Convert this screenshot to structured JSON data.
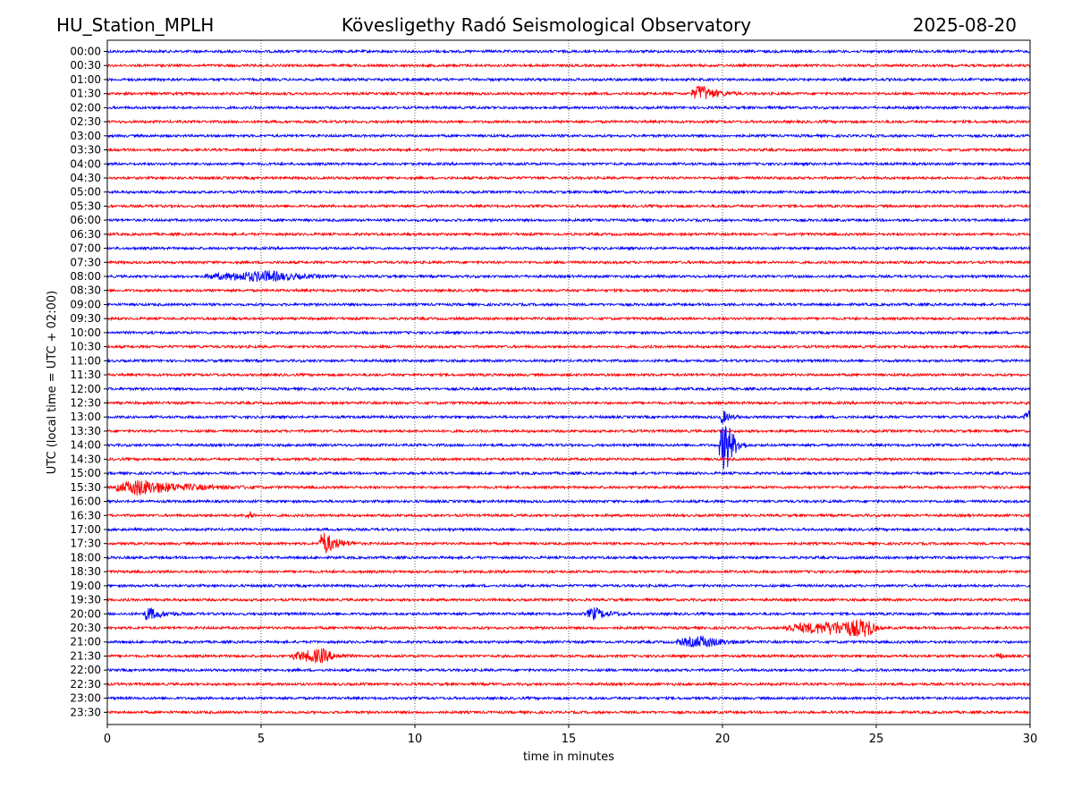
{
  "header": {
    "station": "HU_Station_MPLH",
    "title": "Kövesligethy Radó Seismological Observatory",
    "date": "2025-08-20"
  },
  "chart_data": {
    "type": "line",
    "subtype": "helicorder",
    "xlabel": "time in minutes",
    "ylabel": "UTC (local time = UTC + 02:00)",
    "xlim": [
      0,
      30
    ],
    "x_ticks": [
      "0",
      "5",
      "10",
      "15",
      "20",
      "25",
      "30"
    ],
    "grid": "vertical dotted lines at each x tick",
    "colors": {
      "even_rows": "#0000ff",
      "odd_rows": "#ff0000",
      "frame": "#000000"
    },
    "rows": [
      "00:00",
      "00:30",
      "01:00",
      "01:30",
      "02:00",
      "02:30",
      "03:00",
      "03:30",
      "04:00",
      "04:30",
      "05:00",
      "05:30",
      "06:00",
      "06:30",
      "07:00",
      "07:30",
      "08:00",
      "08:30",
      "09:00",
      "09:30",
      "10:00",
      "10:30",
      "11:00",
      "11:30",
      "12:00",
      "12:30",
      "13:00",
      "13:30",
      "14:00",
      "14:30",
      "15:00",
      "15:30",
      "16:00",
      "16:30",
      "17:00",
      "17:30",
      "18:00",
      "18:30",
      "19:00",
      "19:30",
      "20:00",
      "20:30",
      "21:00",
      "21:30",
      "22:00",
      "22:30",
      "23:00",
      "23:30"
    ],
    "events": [
      {
        "row": "01:30",
        "minute_start": 19.0,
        "minute_end": 20.6,
        "peak_minute": 19.3,
        "amplitude": 0.6
      },
      {
        "row": "08:00",
        "minute_start": 3.2,
        "minute_end": 7.8,
        "peak_minute": 5.3,
        "amplitude": 0.35
      },
      {
        "row": "13:00",
        "minute_start": 19.9,
        "minute_end": 20.6,
        "peak_minute": 20.0,
        "amplitude": 0.5
      },
      {
        "row": "13:00",
        "minute_start": 29.8,
        "minute_end": 30.0,
        "peak_minute": 30.0,
        "amplitude": 0.5
      },
      {
        "row": "14:00",
        "minute_start": 19.9,
        "minute_end": 20.8,
        "peak_minute": 20.1,
        "amplitude": 2.2
      },
      {
        "row": "15:30",
        "minute_start": 0.3,
        "minute_end": 5.0,
        "peak_minute": 1.0,
        "amplitude": 0.55
      },
      {
        "row": "16:30",
        "minute_start": 4.5,
        "minute_end": 4.9,
        "peak_minute": 4.7,
        "amplitude": 0.25
      },
      {
        "row": "17:30",
        "minute_start": 6.9,
        "minute_end": 8.2,
        "peak_minute": 7.0,
        "amplitude": 0.9
      },
      {
        "row": "20:00",
        "minute_start": 1.2,
        "minute_end": 2.5,
        "peak_minute": 1.3,
        "amplitude": 0.5
      },
      {
        "row": "20:00",
        "minute_start": 15.6,
        "minute_end": 17.0,
        "peak_minute": 15.8,
        "amplitude": 0.45
      },
      {
        "row": "20:30",
        "minute_start": 22.0,
        "minute_end": 25.2,
        "peak_minute": 24.8,
        "amplitude": 0.6
      },
      {
        "row": "21:00",
        "minute_start": 18.5,
        "minute_end": 21.0,
        "peak_minute": 19.4,
        "amplitude": 0.4
      },
      {
        "row": "21:30",
        "minute_start": 6.0,
        "minute_end": 8.0,
        "peak_minute": 7.0,
        "amplitude": 0.5
      },
      {
        "row": "21:30",
        "minute_start": 28.9,
        "minute_end": 29.2,
        "peak_minute": 29.0,
        "amplitude": 0.3
      }
    ]
  }
}
